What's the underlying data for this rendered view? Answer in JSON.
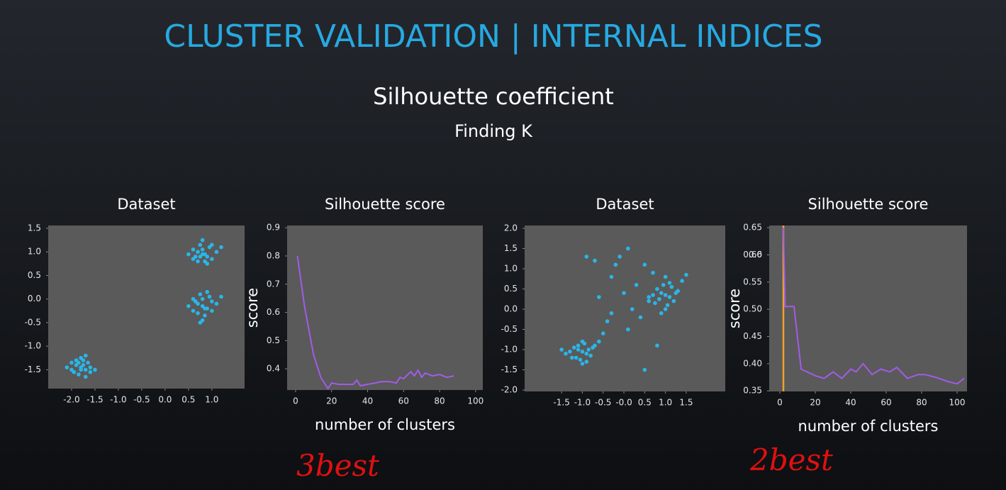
{
  "header": {
    "title": "CLUSTER VALIDATION | INTERNAL INDICES",
    "subtitle": "Silhouette coefficient",
    "heading": "Finding K"
  },
  "annotations": [
    "3best",
    "2best"
  ],
  "chart_data": [
    {
      "type": "scatter",
      "title": "Dataset",
      "color": "#29b6e8",
      "x": [
        -1.8,
        -1.9,
        -1.7,
        -2.0,
        -1.6,
        -1.85,
        -1.75,
        -1.95,
        -1.65,
        -1.8,
        -2.1,
        -1.5,
        -1.9,
        -1.7,
        -1.8,
        -1.6,
        -2.0,
        -1.75,
        -1.85,
        -1.7,
        0.8,
        0.7,
        0.9,
        0.6,
        1.0,
        0.75,
        0.85,
        0.65,
        0.95,
        0.8,
        0.5,
        1.1,
        0.7,
        0.9,
        0.8,
        0.6,
        1.0,
        0.85,
        0.75,
        1.2,
        0.8,
        0.7,
        0.9,
        0.6,
        1.0,
        0.75,
        0.85,
        0.65,
        0.95,
        0.8,
        0.5,
        1.1,
        0.7,
        0.9,
        0.8,
        0.6,
        1.0,
        0.85,
        0.75,
        1.2
      ],
      "values": [
        -1.45,
        -1.4,
        -1.5,
        -1.35,
        -1.45,
        -1.6,
        -1.3,
        -1.55,
        -1.35,
        -1.25,
        -1.45,
        -1.5,
        -1.3,
        -1.65,
        -1.5,
        -1.55,
        -1.5,
        -1.4,
        -1.35,
        -1.2,
        0.95,
        1.0,
        0.9,
        1.05,
        0.85,
        1.15,
        0.8,
        0.9,
        1.1,
        1.25,
        0.95,
        1.0,
        0.8,
        0.75,
        1.05,
        0.85,
        1.15,
        0.95,
        0.9,
        1.1,
        -0.15,
        -0.1,
        -0.2,
        0.0,
        -0.25,
        0.1,
        -0.35,
        -0.05,
        0.05,
        -0.45,
        -0.15,
        -0.1,
        -0.3,
        0.15,
        0.0,
        -0.25,
        -0.05,
        -0.2,
        -0.5,
        0.05
      ],
      "xlim": [
        -2.5,
        1.7
      ],
      "ylim": [
        -1.9,
        1.56
      ],
      "xticks": [
        {
          "value": -2,
          "label": "-2.0"
        },
        -1.5,
        {
          "value": -1,
          "label": "-1.0"
        },
        -0.5,
        {
          "value": 0,
          "label": "0.0"
        },
        0.5,
        {
          "value": 1,
          "label": "1.0"
        }
      ],
      "yticks": [
        1.5,
        {
          "value": 1,
          "label": "1.0"
        },
        0.5,
        {
          "value": 0,
          "label": "0.0"
        },
        -0.5,
        {
          "value": -1,
          "label": "-1.0"
        },
        -1.5
      ]
    },
    {
      "type": "line",
      "title": "Silhouette score",
      "xlabel": "number of clusters",
      "ylabel": "score",
      "color": "#a35be8",
      "x": [
        1,
        5,
        10,
        14,
        18,
        20,
        24,
        28,
        32,
        34,
        36,
        40,
        44,
        48,
        52,
        56,
        58,
        60,
        64,
        66,
        68,
        70,
        72,
        76,
        80,
        84,
        88
      ],
      "values": [
        0.8,
        0.62,
        0.45,
        0.37,
        0.33,
        0.35,
        0.345,
        0.345,
        0.345,
        0.36,
        0.34,
        0.345,
        0.35,
        0.355,
        0.355,
        0.35,
        0.37,
        0.365,
        0.39,
        0.375,
        0.395,
        0.37,
        0.385,
        0.375,
        0.38,
        0.37,
        0.375
      ],
      "xlim": [
        -4.7,
        104
      ],
      "ylim": [
        0.325,
        0.908
      ],
      "xticks": [
        0,
        20,
        40,
        60,
        80,
        100
      ],
      "yticks": [
        0.9,
        0.8,
        0.7,
        0.6,
        0.5,
        0.4
      ]
    },
    {
      "type": "scatter",
      "title": "Dataset",
      "color": "#29b6e8",
      "x": [
        -1.0,
        -1.1,
        -0.9,
        -1.2,
        -0.8,
        -1.05,
        -0.95,
        -1.3,
        -0.75,
        -1.0,
        -1.4,
        -0.7,
        -1.15,
        -0.85,
        -1.0,
        -1.25,
        -0.9,
        -1.1,
        -1.5,
        -0.6,
        1.0,
        0.9,
        1.1,
        0.8,
        1.2,
        0.95,
        1.05,
        0.7,
        1.3,
        1.0,
        0.6,
        1.4,
        0.85,
        1.15,
        1.0,
        0.75,
        1.25,
        0.9,
        1.1,
        1.5,
        -0.9,
        -0.7,
        -0.3,
        -0.1,
        0.1,
        -0.2,
        0.0,
        0.3,
        0.5,
        0.2,
        -0.4,
        0.6,
        -0.5,
        0.4,
        0.7,
        -0.6,
        0.1,
        0.5,
        0.8,
        -0.3
      ],
      "values": [
        -1.05,
        -1.0,
        -1.1,
        -0.95,
        -1.15,
        -1.25,
        -0.85,
        -1.05,
        -0.95,
        -1.35,
        -1.1,
        -0.9,
        -1.2,
        -1.0,
        -0.8,
        -1.2,
        -1.3,
        -0.9,
        -1.0,
        -0.8,
        0.35,
        0.4,
        0.3,
        0.5,
        0.2,
        0.6,
        0.1,
        0.35,
        0.45,
        0.0,
        0.3,
        0.7,
        0.25,
        0.55,
        0.8,
        0.15,
        0.4,
        -0.1,
        0.65,
        0.85,
        1.3,
        1.2,
        0.8,
        1.3,
        1.5,
        1.1,
        0.4,
        0.6,
        1.1,
        0.0,
        -0.3,
        0.2,
        -0.6,
        -0.2,
        0.9,
        0.3,
        -0.5,
        -1.5,
        -0.9,
        -0.1
      ],
      "xlim": [
        -2.39,
        2.44
      ],
      "ylim": [
        -2.035,
        2.07
      ],
      "xticks": [
        -1.5,
        {
          "value": -1,
          "label": "-1.0"
        },
        -0.5,
        {
          "value": 0,
          "label": "-0.0"
        },
        0.5,
        {
          "value": 1,
          "label": "1.0"
        },
        1.5
      ],
      "yticks": [
        {
          "value": 2,
          "label": "2.0"
        },
        1.5,
        {
          "value": 1,
          "label": "1.0"
        },
        0.5,
        {
          "value": 0,
          "label": "0.0"
        },
        -0.5,
        {
          "value": -1,
          "label": "-1.0"
        },
        -1.5,
        {
          "value": -2,
          "label": "-2.0"
        }
      ]
    },
    {
      "type": "line",
      "title": "Silhouette score",
      "xlabel": "number of clusters",
      "ylabel": "score",
      "color": "#a35be8",
      "x": [
        2,
        3,
        8,
        12,
        20,
        25,
        30,
        35,
        40,
        43,
        47,
        52,
        57,
        62,
        66,
        72,
        78,
        82,
        88,
        95,
        100,
        104
      ],
      "values": [
        0.65,
        0.505,
        0.505,
        0.39,
        0.378,
        0.373,
        0.385,
        0.373,
        0.39,
        0.385,
        0.4,
        0.38,
        0.39,
        0.385,
        0.393,
        0.373,
        0.38,
        0.38,
        0.375,
        0.367,
        0.363,
        0.373
      ],
      "vline": 2,
      "vline_color": "#f0a030",
      "xlim": [
        -6,
        105.6
      ],
      "ylim": [
        0.349,
        0.654
      ],
      "xticks": [
        0,
        20,
        40,
        60,
        80,
        100
      ],
      "yticks": [
        0.65,
        0.6,
        {
          "value": 0.6,
          "label": "0.60"
        },
        0.55,
        {
          "value": 0.5,
          "label": "0.50"
        },
        0.45,
        {
          "value": 0.4,
          "label": "0.40"
        },
        0.35
      ]
    }
  ]
}
